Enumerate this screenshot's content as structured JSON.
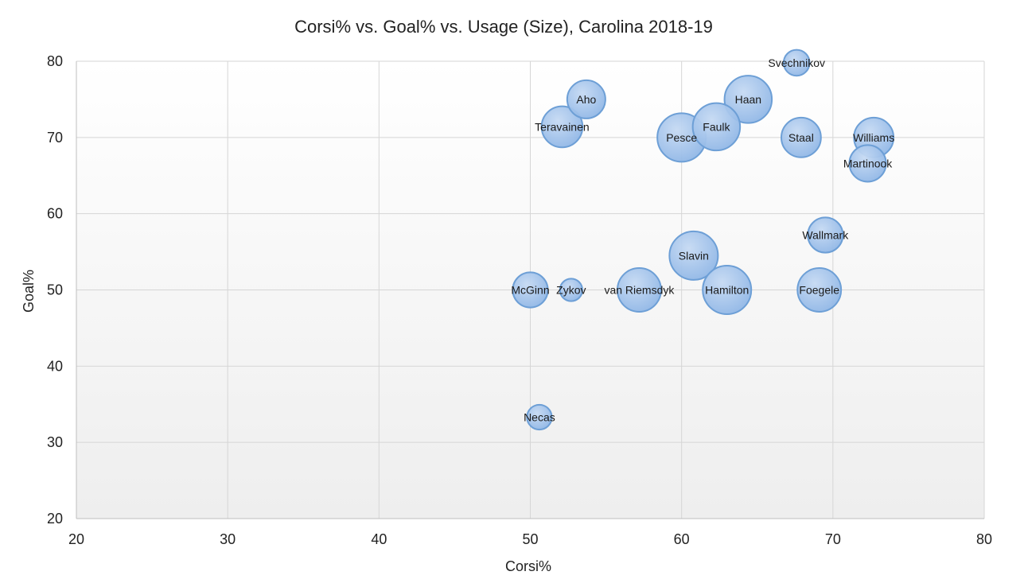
{
  "chart_data": {
    "type": "bubble",
    "title": "Corsi% vs. Goal% vs. Usage (Size), Carolina 2018-19",
    "xlabel": "Corsi%",
    "ylabel": "Goal%",
    "xlim": [
      20,
      80
    ],
    "ylim": [
      20,
      80
    ],
    "xticks": [
      "20",
      "30",
      "40",
      "50",
      "60",
      "70",
      "80"
    ],
    "yticks": [
      "20",
      "30",
      "40",
      "50",
      "60",
      "70",
      "80"
    ],
    "grid": true,
    "legend": "none",
    "colors": {
      "bubble_fill": "#9dc0ea",
      "bubble_stroke": "#6d9fd6",
      "plot_bg_top": "#ffffff",
      "plot_bg_bottom": "#eeeeee",
      "grid": "#d6d6d6"
    },
    "points": [
      {
        "label": "Svechnikov",
        "x": 67.6,
        "y": 79.8,
        "size": 0.6
      },
      {
        "label": "Aho",
        "x": 53.7,
        "y": 75.0,
        "size": 1.3
      },
      {
        "label": "Haan",
        "x": 64.4,
        "y": 75.0,
        "size": 2.0
      },
      {
        "label": "Teravainen",
        "x": 52.1,
        "y": 71.4,
        "size": 1.5
      },
      {
        "label": "Faulk",
        "x": 62.3,
        "y": 71.4,
        "size": 2.0
      },
      {
        "label": "Pesce",
        "x": 60.0,
        "y": 70.0,
        "size": 2.1
      },
      {
        "label": "Staal",
        "x": 67.9,
        "y": 70.0,
        "size": 1.4
      },
      {
        "label": "Williams",
        "x": 72.7,
        "y": 70.0,
        "size": 1.4
      },
      {
        "label": "Martinook",
        "x": 72.3,
        "y": 66.6,
        "size": 1.2
      },
      {
        "label": "Wallmark",
        "x": 69.5,
        "y": 57.2,
        "size": 1.1
      },
      {
        "label": "Slavin",
        "x": 60.8,
        "y": 54.5,
        "size": 2.1
      },
      {
        "label": "McGinn",
        "x": 50.0,
        "y": 50.0,
        "size": 1.1
      },
      {
        "label": "Zykov",
        "x": 52.7,
        "y": 50.0,
        "size": 0.45
      },
      {
        "label": "van Riemsdyk",
        "x": 57.2,
        "y": 50.0,
        "size": 1.7
      },
      {
        "label": "Hamilton",
        "x": 63.0,
        "y": 50.0,
        "size": 2.1
      },
      {
        "label": "Foegele",
        "x": 69.1,
        "y": 50.0,
        "size": 1.7
      },
      {
        "label": "Necas",
        "x": 50.6,
        "y": 33.3,
        "size": 0.55
      }
    ]
  }
}
